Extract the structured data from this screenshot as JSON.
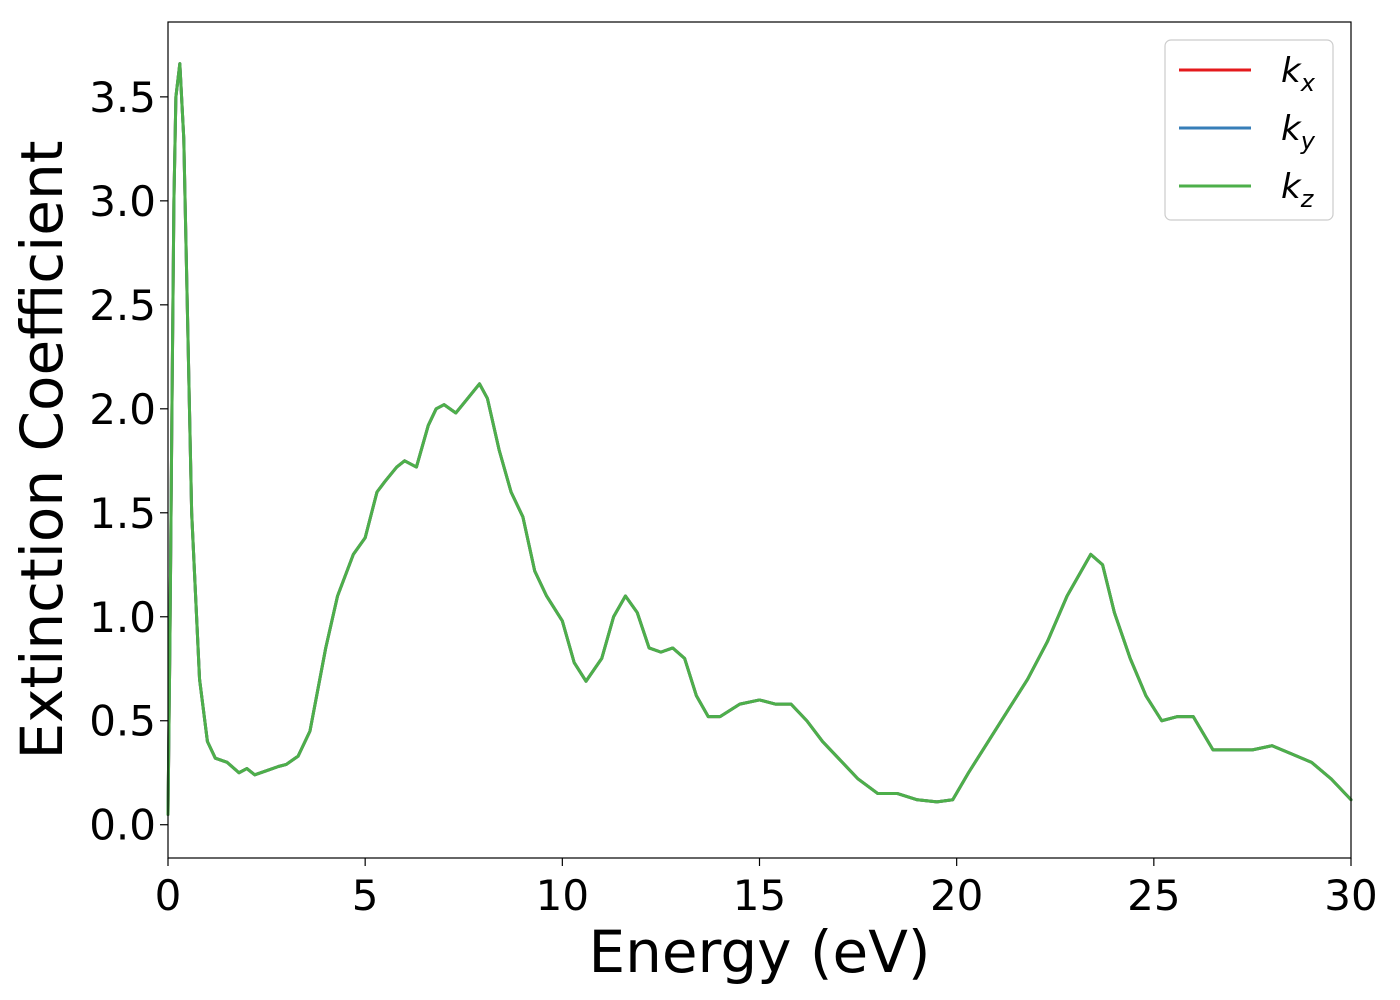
{
  "chart_data": {
    "type": "line",
    "title": "",
    "xlabel": "Energy (eV)",
    "ylabel": "Extinction Coefficient",
    "xlim": [
      0,
      30
    ],
    "ylim": [
      -0.16,
      3.86
    ],
    "xticks": [
      0,
      5,
      10,
      15,
      20,
      25,
      30
    ],
    "xtick_labels": [
      "0",
      "5",
      "10",
      "15",
      "20",
      "25",
      "30"
    ],
    "yticks": [
      0.0,
      0.5,
      1.0,
      1.5,
      2.0,
      2.5,
      3.0,
      3.5
    ],
    "ytick_labels": [
      "0.0",
      "0.5",
      "1.0",
      "1.5",
      "2.0",
      "2.5",
      "3.0",
      "3.5"
    ],
    "grid": false,
    "legend_position": "top-right",
    "series": [
      {
        "name": "k_x",
        "label_base": "k",
        "label_sub": "x",
        "color": "#e41a1c"
      },
      {
        "name": "k_y",
        "label_base": "k",
        "label_sub": "y",
        "color": "#377eb8"
      },
      {
        "name": "k_z",
        "label_base": "k",
        "label_sub": "z",
        "color": "#4daf4a"
      }
    ],
    "x": [
      0,
      0.05,
      0.1,
      0.15,
      0.2,
      0.3,
      0.4,
      0.5,
      0.6,
      0.8,
      1.0,
      1.2,
      1.5,
      1.8,
      2.0,
      2.2,
      2.5,
      2.8,
      3.0,
      3.3,
      3.6,
      4.0,
      4.3,
      4.7,
      5.0,
      5.3,
      5.5,
      5.8,
      6.0,
      6.3,
      6.6,
      6.8,
      7.0,
      7.3,
      7.6,
      7.9,
      8.1,
      8.4,
      8.7,
      9.0,
      9.3,
      9.6,
      10.0,
      10.3,
      10.6,
      11.0,
      11.3,
      11.6,
      11.9,
      12.2,
      12.5,
      12.8,
      13.1,
      13.4,
      13.7,
      14.0,
      14.5,
      15.0,
      15.4,
      15.8,
      16.2,
      16.6,
      17.0,
      17.5,
      18.0,
      18.5,
      19.0,
      19.5,
      19.9,
      20.3,
      20.8,
      21.3,
      21.8,
      22.3,
      22.8,
      23.4,
      23.7,
      24.0,
      24.4,
      24.8,
      25.2,
      25.6,
      26.0,
      26.5,
      27.0,
      27.5,
      28.0,
      28.5,
      29.0,
      29.5,
      30.0
    ],
    "values_kz": [
      0.05,
      0.9,
      2.0,
      3.0,
      3.5,
      3.66,
      3.3,
      2.4,
      1.5,
      0.7,
      0.4,
      0.32,
      0.3,
      0.25,
      0.27,
      0.24,
      0.26,
      0.28,
      0.29,
      0.33,
      0.45,
      0.85,
      1.1,
      1.3,
      1.38,
      1.6,
      1.65,
      1.72,
      1.75,
      1.72,
      1.92,
      2.0,
      2.02,
      1.98,
      2.05,
      2.12,
      2.05,
      1.8,
      1.6,
      1.48,
      1.22,
      1.1,
      0.98,
      0.78,
      0.69,
      0.8,
      1.0,
      1.1,
      1.02,
      0.85,
      0.83,
      0.85,
      0.8,
      0.62,
      0.52,
      0.52,
      0.58,
      0.6,
      0.58,
      0.58,
      0.5,
      0.4,
      0.32,
      0.22,
      0.15,
      0.15,
      0.12,
      0.11,
      0.12,
      0.25,
      0.4,
      0.55,
      0.7,
      0.88,
      1.1,
      1.3,
      1.25,
      1.02,
      0.8,
      0.62,
      0.5,
      0.52,
      0.52,
      0.36,
      0.36,
      0.36,
      0.38,
      0.34,
      0.3,
      0.22,
      0.12
    ]
  }
}
